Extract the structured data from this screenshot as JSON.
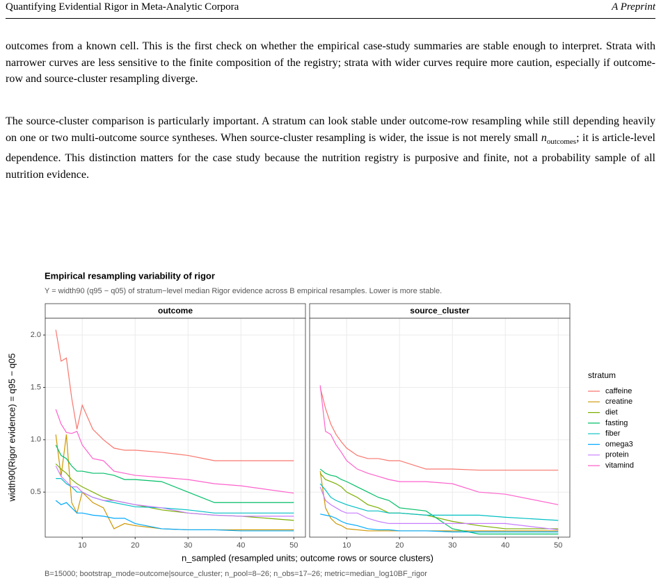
{
  "header": {
    "left": "Quantifying Evidential Rigor in Meta-Analytic Corpora",
    "right": "A Preprint"
  },
  "paragraphs": [
    [
      "outcomes from a known cell. This is the first check on whether the empirical case-study summaries are stable enough to interpret. Strata with narrower curves are less sensitive to the finite composition of the registry; strata with wider curves require more caution, especially if outcome-row and source-cluster resampling diverge."
    ],
    [
      "The source-cluster comparison is particularly important. A stratum can look stable under outcome-row resampling while still depending heavily on one or two multi-outcome source syntheses. When source-cluster resampling is wider, the issue is not merely small ",
      "n",
      "outcomes",
      "; it is article-level dependence. This distinction matters for the case study because the nutrition registry is purposive and finite, not a probability sample of all nutrition evidence."
    ]
  ],
  "chart_data": {
    "type": "line",
    "title": "Empirical resampling variability of rigor",
    "subtitle": "Y = width90 (q95 − q05) of stratum−level median Rigor evidence across B empirical resamples. Lower is more stable.",
    "x_label": "n_sampled (resampled units; outcome rows or source clusters)",
    "y_label": "width90(Rigor evidence) = q95 − q05",
    "caption": "B=15000; bootstrap_mode=outcome|source_cluster; n_pool=8–26; n_obs=17–26; metric=median_log10BF_rigor",
    "legend_title": "stratum",
    "grid": true,
    "x": [
      5,
      6,
      7,
      8,
      9,
      10,
      12,
      14,
      16,
      18,
      20,
      25,
      30,
      35,
      40,
      50
    ],
    "xlim": [
      3,
      52.2
    ],
    "xticks": [
      10,
      20,
      30,
      40,
      50
    ],
    "ylim": [
      0.07,
      2.16
    ],
    "yticks": [
      0.5,
      {
        "value": 1,
        "label": "1.0"
      },
      1.5,
      {
        "value": 2,
        "label": "2.0"
      }
    ],
    "facets": [
      {
        "title": "outcome",
        "series": [
          {
            "name": "caffeine",
            "color": "#F8766D",
            "values": [
              2.05,
              1.75,
              1.78,
              1.4,
              1.1,
              1.33,
              1.1,
              1.0,
              0.92,
              0.9,
              0.9,
              0.88,
              0.85,
              0.8,
              0.8,
              0.8
            ]
          },
          {
            "name": "creatine",
            "color": "#CD9600",
            "values": [
              1.05,
              0.65,
              1.05,
              0.4,
              0.3,
              0.5,
              0.4,
              0.35,
              0.15,
              0.2,
              0.18,
              0.15,
              0.14,
              0.14,
              0.14,
              0.14
            ]
          },
          {
            "name": "diet",
            "color": "#7CAE00",
            "values": [
              0.77,
              0.72,
              0.68,
              0.62,
              0.58,
              0.55,
              0.5,
              0.45,
              0.42,
              0.4,
              0.38,
              0.33,
              0.3,
              0.28,
              0.27,
              0.23
            ]
          },
          {
            "name": "fasting",
            "color": "#00BE67",
            "values": [
              0.95,
              0.85,
              0.82,
              0.75,
              0.7,
              0.7,
              0.68,
              0.68,
              0.66,
              0.62,
              0.62,
              0.6,
              0.5,
              0.4,
              0.4,
              0.4
            ]
          },
          {
            "name": "fiber",
            "color": "#00BFC4",
            "values": [
              0.63,
              0.63,
              0.58,
              0.55,
              0.5,
              0.5,
              0.45,
              0.42,
              0.4,
              0.38,
              0.36,
              0.35,
              0.33,
              0.3,
              0.3,
              0.3
            ]
          },
          {
            "name": "omega3",
            "color": "#00A9FF",
            "values": [
              0.42,
              0.38,
              0.4,
              0.35,
              0.3,
              0.3,
              0.28,
              0.27,
              0.25,
              0.25,
              0.2,
              0.15,
              0.14,
              0.14,
              0.13,
              0.13
            ]
          },
          {
            "name": "protein",
            "color": "#C77CFF",
            "values": [
              0.75,
              0.65,
              0.6,
              0.55,
              0.55,
              0.5,
              0.45,
              0.42,
              0.42,
              0.4,
              0.38,
              0.35,
              0.3,
              0.28,
              0.27,
              0.27
            ]
          },
          {
            "name": "vitamind",
            "color": "#FF61CC",
            "values": [
              1.29,
              1.15,
              1.07,
              1.06,
              1.08,
              0.95,
              0.82,
              0.8,
              0.7,
              0.68,
              0.66,
              0.64,
              0.62,
              0.58,
              0.56,
              0.49
            ]
          }
        ]
      },
      {
        "title": "source_cluster",
        "series": [
          {
            "name": "caffeine",
            "color": "#F8766D",
            "values": [
              1.5,
              1.3,
              1.15,
              1.05,
              0.98,
              0.92,
              0.85,
              0.82,
              0.82,
              0.8,
              0.8,
              0.72,
              0.72,
              0.71,
              0.71,
              0.71
            ]
          },
          {
            "name": "creatine",
            "color": "#CD9600",
            "values": [
              0.7,
              0.35,
              0.25,
              0.2,
              0.18,
              0.15,
              0.14,
              0.13,
              0.13,
              0.13,
              0.13,
              0.13,
              0.13,
              0.13,
              0.13,
              0.13
            ]
          },
          {
            "name": "diet",
            "color": "#7CAE00",
            "values": [
              0.68,
              0.62,
              0.6,
              0.58,
              0.55,
              0.5,
              0.45,
              0.38,
              0.35,
              0.3,
              0.3,
              0.28,
              0.22,
              0.18,
              0.15,
              0.15
            ]
          },
          {
            "name": "fasting",
            "color": "#00BE67",
            "values": [
              0.72,
              0.68,
              0.66,
              0.65,
              0.62,
              0.6,
              0.55,
              0.5,
              0.45,
              0.42,
              0.35,
              0.32,
              0.15,
              0.1,
              0.1,
              0.1
            ]
          },
          {
            "name": "fiber",
            "color": "#00BFC4",
            "values": [
              0.58,
              0.52,
              0.45,
              0.42,
              0.4,
              0.38,
              0.35,
              0.32,
              0.32,
              0.3,
              0.3,
              0.28,
              0.28,
              0.28,
              0.26,
              0.23
            ]
          },
          {
            "name": "omega3",
            "color": "#00A9FF",
            "values": [
              0.29,
              0.28,
              0.27,
              0.25,
              0.22,
              0.2,
              0.18,
              0.15,
              0.14,
              0.14,
              0.13,
              0.13,
              0.12,
              0.12,
              0.12,
              0.12
            ]
          },
          {
            "name": "protein",
            "color": "#C77CFF",
            "values": [
              0.55,
              0.42,
              0.38,
              0.35,
              0.32,
              0.3,
              0.3,
              0.25,
              0.22,
              0.2,
              0.2,
              0.2,
              0.2,
              0.2,
              0.2,
              0.14
            ]
          },
          {
            "name": "vitamind",
            "color": "#FF61CC",
            "values": [
              1.52,
              1.08,
              1.05,
              0.95,
              0.88,
              0.8,
              0.72,
              0.68,
              0.65,
              0.62,
              0.6,
              0.6,
              0.58,
              0.5,
              0.48,
              0.38
            ]
          }
        ]
      }
    ]
  }
}
